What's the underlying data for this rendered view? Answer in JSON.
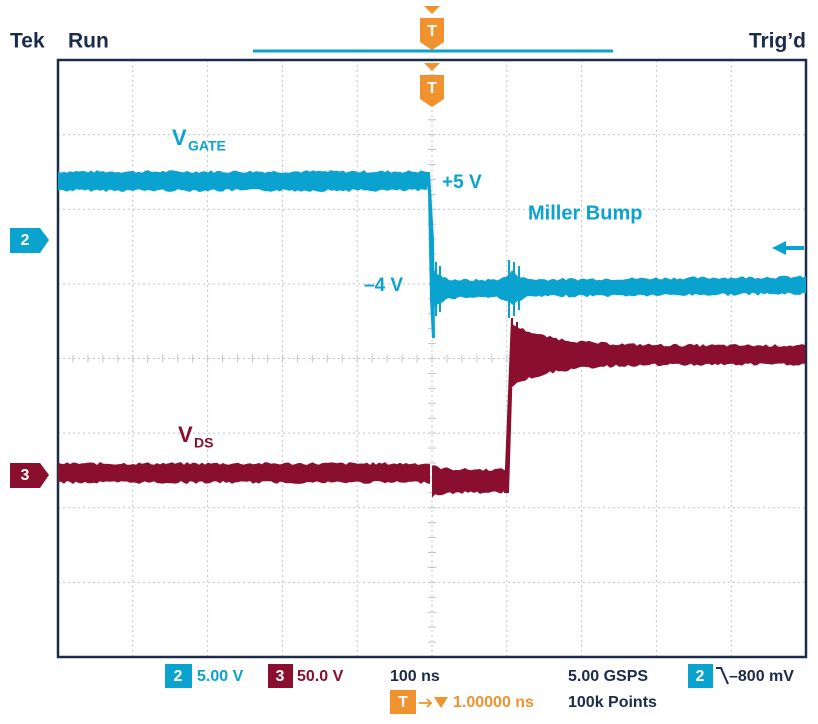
{
  "header": {
    "brand": "Tek",
    "state": "Run",
    "trigger_status": "Trig’d"
  },
  "trigger_marker": "T",
  "channels": [
    {
      "marker": "2"
    },
    {
      "marker": "3"
    }
  ],
  "annotations": {
    "vgate_main": "V",
    "vgate_sub": "GATE",
    "plus5": "+5 V",
    "miller": "Miller Bump",
    "minus4": "–4 V",
    "vds_main": "V",
    "vds_sub": "DS"
  },
  "status": {
    "ch2_label": "2",
    "ch2_scale": "5.00 V",
    "ch3_label": "3",
    "ch3_scale": "50.0 V",
    "timebase": "100 ns",
    "sample_rate": "5.00 GSPS",
    "trig_ch": "2",
    "trig_level": "–800 mV",
    "trig_box": "T",
    "trig_delay": "1.00000 ns",
    "record": "100k Points"
  }
}
